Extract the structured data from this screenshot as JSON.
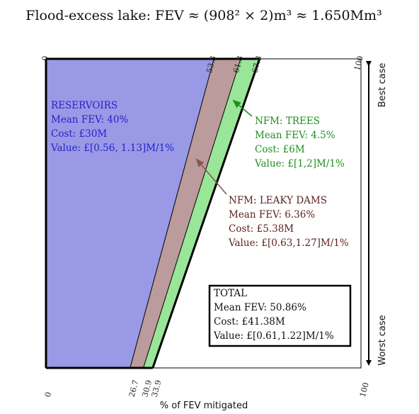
{
  "title": "Flood-excess lake: FEV ≈ (908² × 2)m³ ≈ 1.650Mm³",
  "xlabel": "% of FEV mitigated",
  "axis": {
    "min": "0",
    "max": "100",
    "top_ticks": [
      {
        "value": 0,
        "label": "0"
      },
      {
        "value": 53.3,
        "label": "53.3"
      },
      {
        "value": 61.8,
        "label": "61.8"
      },
      {
        "value": 67.8,
        "label": "67.8"
      },
      {
        "value": 100,
        "label": "100"
      }
    ],
    "bottom_ticks": [
      {
        "value": 0,
        "label": "0"
      },
      {
        "value": 26.7,
        "label": "26.7"
      },
      {
        "value": 30.9,
        "label": "30.9"
      },
      {
        "value": 33.9,
        "label": "33.9"
      },
      {
        "value": 100,
        "label": "100"
      }
    ]
  },
  "scale": {
    "best": "Best case",
    "worst": "Worst case"
  },
  "bands": [
    {
      "name": "reservoirs-band",
      "color": "#9999e6",
      "best": [
        0,
        53.3
      ],
      "worst": [
        0,
        26.7
      ]
    },
    {
      "name": "leaky-dams-band",
      "color": "#bb9b9b",
      "best": [
        53.3,
        61.8
      ],
      "worst": [
        26.7,
        30.9
      ]
    },
    {
      "name": "trees-band",
      "color": "#99e699",
      "best": [
        61.8,
        67.8
      ],
      "worst": [
        30.9,
        33.9
      ]
    }
  ],
  "reservoirs": {
    "color": "#2323c8",
    "title": "RESERVOIRS",
    "fev": "Mean FEV: 40%",
    "cost": "Cost:  £30M",
    "value": "Value:  £[0.56, 1.13]M/1%"
  },
  "trees": {
    "color": "#1f8f1f",
    "title": "NFM: TREES",
    "fev": "Mean FEV: 4.5%",
    "cost": "Cost:  £6M",
    "value": "Value:  £[1,2]M/1%"
  },
  "leaky": {
    "color": "#5a1f1f",
    "title": "NFM: LEAKY DAMS",
    "fev": "Mean FEV: 6.36%",
    "cost": "Cost:  £5.38M",
    "value": "Value:  £[0.63,1.27]M/1%"
  },
  "total": {
    "title": "TOTAL",
    "fev": "Mean FEV: 50.86%",
    "cost": "Cost:  £41.38M",
    "value": "Value:  £[0.61,1.22]M/1%"
  }
}
